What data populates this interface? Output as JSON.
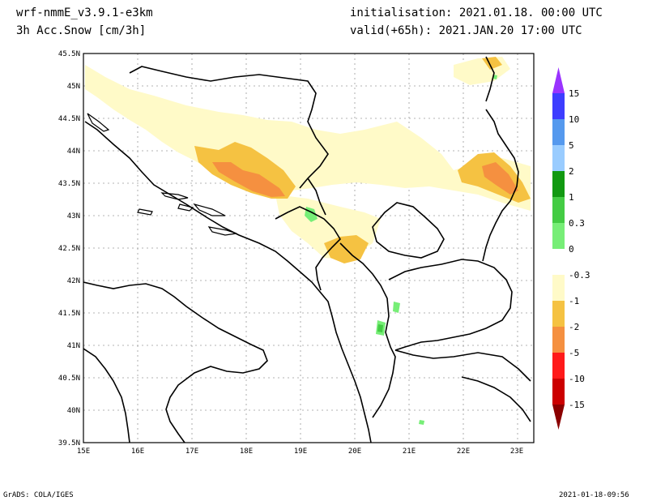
{
  "header": {
    "model": "wrf-nmmE_v3.9.1-e3km",
    "variable": "3h Acc.Snow [cm/3h]",
    "init": "initialisation: 2021.01.18.  00:00 UTC",
    "valid": "valid(+65h): 2021.JAN.20 17:00 UTC"
  },
  "footer": {
    "credit": "GrADS: COLA/IGES",
    "timestamp": "2021-01-18-09:56"
  },
  "map": {
    "lon_ticks": [
      "15E",
      "16E",
      "17E",
      "18E",
      "19E",
      "20E",
      "21E",
      "22E",
      "23E"
    ],
    "lat_ticks": [
      "45.5N",
      "45N",
      "44.5N",
      "44N",
      "43.5N",
      "43N",
      "42.5N",
      "42N",
      "41.5N",
      "41N",
      "40.5N",
      "40N",
      "39.5N"
    ],
    "lon_range": [
      15,
      23.3
    ],
    "lat_range": [
      39.5,
      45.5
    ]
  },
  "colorbar": {
    "labels": [
      "15",
      "10",
      "5",
      "2",
      "1",
      "0.3",
      "0",
      "-0.3",
      "-1",
      "-2",
      "-5",
      "-10",
      "-15"
    ],
    "colors": {
      "top_triangle": "#9a33ff",
      "c1": "#3d3dff",
      "c2": "#5599ee",
      "c3": "#99ccff",
      "c4": "#119911",
      "c5": "#44cc44",
      "c6": "#77ee77",
      "c7": "#ffffff",
      "c8": "#fffac8",
      "c9": "#f5c242",
      "c10": "#f59040",
      "c11": "#ff1a1a",
      "c12": "#cc0000",
      "bottom_triangle": "#8b0000"
    }
  }
}
